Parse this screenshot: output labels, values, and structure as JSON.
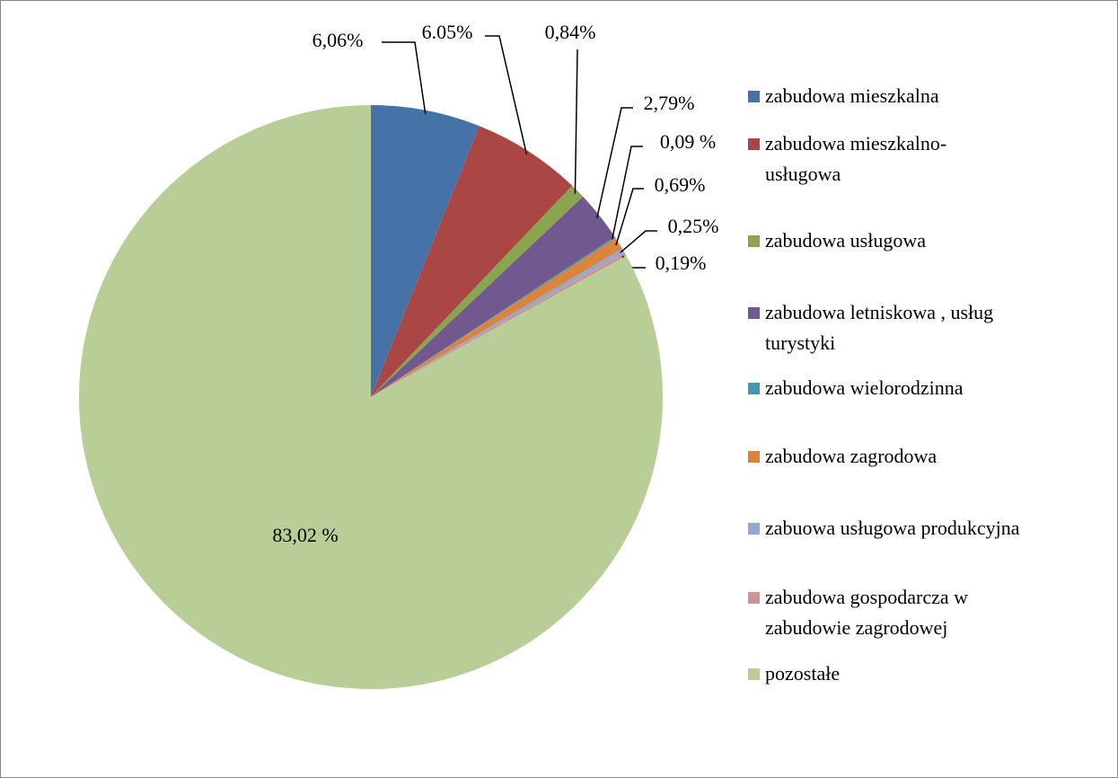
{
  "chart_data": {
    "type": "pie",
    "categories": [
      "zabudowa mieszkalna",
      "zabudowa mieszkalno-usługowa",
      "zabudowa usługowa",
      "zabudowa letniskowa , usług turystyki",
      "zabudowa wielorodzinna",
      "zabudowa zagrodowa",
      "zabuowa usługowa produkcyjna",
      "zabudowa gospodarcza w zabudowie zagrodowej",
      "pozostałe"
    ],
    "values": [
      6.06,
      6.05,
      0.84,
      2.79,
      0.09,
      0.69,
      0.25,
      0.19,
      83.02
    ],
    "value_labels": [
      "6,06%",
      "6.05%",
      "0,84%",
      "2,79%",
      "0,09 %",
      "0,69%",
      "0,25%",
      "0,19%",
      "83,02 %"
    ],
    "colors": [
      "#4572a7",
      "#aa4643",
      "#89a54e",
      "#71588f",
      "#4198af",
      "#db843d",
      "#93a9cf",
      "#d19392",
      "#b9cd96"
    ],
    "legend": "right"
  }
}
